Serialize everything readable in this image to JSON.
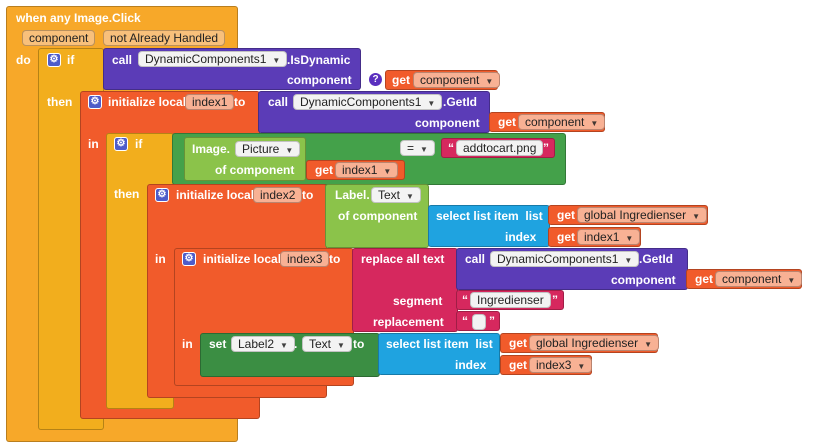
{
  "event": {
    "title": "when any Image.Click",
    "param1": "component",
    "param2": "not Already Handled",
    "do": "do"
  },
  "if1": {
    "if_label": "if",
    "call": "call",
    "component_name": "DynamicComponents1",
    "method": ".IsDynamic",
    "component_label": "component",
    "get": "get",
    "get_var": "component"
  },
  "init1": {
    "then": "then",
    "init": "initialize local",
    "var": "index1",
    "to": "to",
    "call": "call",
    "component_name": "DynamicComponents1",
    "method": ".GetId",
    "component_label": "component",
    "get": "get",
    "get_var": "component",
    "in": "in"
  },
  "if2": {
    "if_label": "if",
    "image": "Image.",
    "prop": "Picture",
    "of_component": "of component",
    "get": "get",
    "get_var": "index1",
    "eq": "=",
    "text": "addtocart.png"
  },
  "init2": {
    "then": "then",
    "init": "initialize local",
    "var": "index2",
    "to": "to",
    "label": "Label.",
    "prop": "Text",
    "of_component": "of component",
    "select": "select list item",
    "list": "list",
    "get": "get",
    "list_var": "global Ingredienser",
    "index": "index",
    "index_var": "index1"
  },
  "init3": {
    "in": "in",
    "init": "initialize local",
    "var": "index3",
    "to": "to",
    "replace": "replace all text",
    "call": "call",
    "component_name": "DynamicComponents1",
    "method": ".GetId",
    "component_label": "component",
    "get": "get",
    "get_var": "component",
    "segment": "segment",
    "segment_text": "Ingredienser",
    "replacement": "replacement"
  },
  "set": {
    "in": "in",
    "set": "set",
    "component": "Label2",
    "dot": ".",
    "prop": "Text",
    "to": "to",
    "select": "select list item",
    "list": "list",
    "get": "get",
    "list_var": "global Ingredienser",
    "index": "index",
    "index_var": "index3"
  },
  "colors": {
    "event": "#f7a829",
    "control": "#f2ae1d",
    "variable": "#f15b2b",
    "procedure": "#5b3cb7",
    "component": "#8bc34a",
    "setter": "#3b8e43",
    "list": "#1fa3e0",
    "text": "#d6285e",
    "logic": "#44a14a"
  }
}
